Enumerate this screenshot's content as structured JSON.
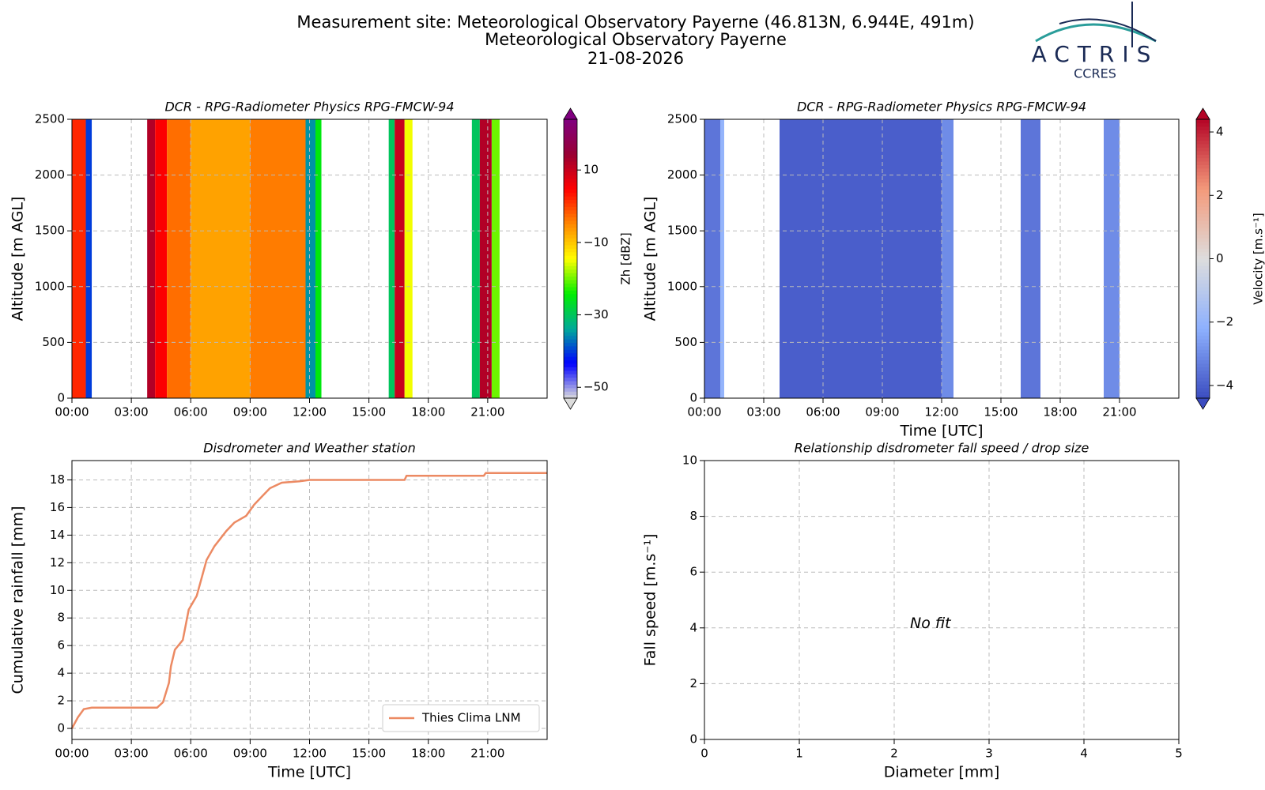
{
  "header": {
    "lines": [
      "Measurement site: Meteorological Observatory Payerne (46.813N, 6.944E, 491m)",
      "Meteorological Observatory Payerne",
      "21-08-2026"
    ],
    "logo": "ACTRIS",
    "logo_sub": "CCRES"
  },
  "chart_data": [
    {
      "type": "heatmap",
      "title": "DCR - RPG-Radiometer Physics RPG-FMCW-94",
      "ylabel": "Altitude [m AGL]",
      "xlim": [
        0,
        24
      ],
      "ylim": [
        0,
        2500
      ],
      "xticks": [
        {
          "value": 0,
          "label": "00:00"
        },
        {
          "value": 3,
          "label": "03:00"
        },
        {
          "value": 6,
          "label": "06:00"
        },
        {
          "value": 9,
          "label": "09:00"
        },
        {
          "value": 12,
          "label": "12:00"
        },
        {
          "value": 15,
          "label": "15:00"
        },
        {
          "value": 18,
          "label": "18:00"
        },
        {
          "value": 21,
          "label": "21:00"
        }
      ],
      "yticks": [
        0,
        500,
        1000,
        1500,
        2000,
        2500
      ],
      "grid": true,
      "colorbar_label": "Zh [dBZ]",
      "zlim": [
        -53,
        24
      ],
      "zticks": [
        {
          "value": -50,
          "label": "−50"
        },
        {
          "value": -30,
          "label": "−30"
        },
        {
          "value": -10,
          "label": "−10"
        },
        10
      ],
      "colormap": [
        "#dcdcdc",
        "#0000ff",
        "#00aa99",
        "#00ee00",
        "#ffff00",
        "#ff8800",
        "#ff0000",
        "#990033",
        "#800080"
      ],
      "x_edges": [
        0,
        0.7,
        1.0,
        3.8,
        4.2,
        4.8,
        6,
        9,
        11.8,
        12.3,
        12.6,
        16,
        16.3,
        16.8,
        17.2,
        20.2,
        20.6,
        21.2,
        21.6,
        24
      ],
      "values": [
        2,
        -40,
        null,
        12,
        5,
        -3,
        -7,
        -4,
        -35,
        -25,
        null,
        -30,
        10,
        -15,
        null,
        -30,
        12,
        -20,
        null
      ]
    },
    {
      "type": "heatmap",
      "title": "DCR - RPG-Radiometer Physics RPG-FMCW-94",
      "ylabel": "Altitude [m AGL]",
      "xlabel": "Time [UTC]",
      "xlim": [
        0,
        24
      ],
      "ylim": [
        0,
        2500
      ],
      "xticks": [
        {
          "value": 0,
          "label": "00:00"
        },
        {
          "value": 3,
          "label": "03:00"
        },
        {
          "value": 6,
          "label": "06:00"
        },
        {
          "value": 9,
          "label": "09:00"
        },
        {
          "value": 12,
          "label": "12:00"
        },
        {
          "value": 15,
          "label": "15:00"
        },
        {
          "value": 18,
          "label": "18:00"
        },
        {
          "value": 21,
          "label": "21:00"
        }
      ],
      "yticks": [
        0,
        500,
        1000,
        1500,
        2000,
        2500
      ],
      "grid": true,
      "colorbar_label": "Velocity [m.s⁻¹]",
      "zlim": [
        -4.4,
        4.4
      ],
      "zticks": [
        {
          "value": -4,
          "label": "−4"
        },
        {
          "value": -2,
          "label": "−2"
        },
        0,
        2,
        4
      ],
      "colormap": [
        "#3b4cc0",
        "#8db0fe",
        "#dddddd",
        "#f49a7b",
        "#b40426"
      ],
      "x_edges": [
        0,
        0.8,
        1.0,
        3.8,
        12,
        12.6,
        16,
        17,
        20.2,
        21,
        24
      ],
      "values": [
        -3.5,
        -2,
        null,
        -4,
        -3,
        null,
        -3.5,
        null,
        -3,
        null
      ]
    },
    {
      "type": "line",
      "title": "Disdrometer and Weather station",
      "ylabel": "Cumulative rainfall [mm]",
      "xlabel": "Time [UTC]",
      "xlim": [
        0,
        24
      ],
      "ylim": [
        -0.8,
        19.4
      ],
      "xticks": [
        {
          "value": 0,
          "label": "00:00"
        },
        {
          "value": 3,
          "label": "03:00"
        },
        {
          "value": 6,
          "label": "06:00"
        },
        {
          "value": 9,
          "label": "09:00"
        },
        {
          "value": 12,
          "label": "12:00"
        },
        {
          "value": 15,
          "label": "15:00"
        },
        {
          "value": 18,
          "label": "18:00"
        },
        {
          "value": 21,
          "label": "21:00"
        }
      ],
      "yticks": [
        0,
        2,
        4,
        6,
        8,
        10,
        12,
        14,
        16,
        18
      ],
      "grid": true,
      "legend": "lower right",
      "x": [
        0,
        0.3,
        0.6,
        1,
        4.3,
        4.6,
        4.9,
        5.0,
        5.2,
        5.6,
        5.9,
        6.3,
        6.8,
        7.2,
        7.8,
        8.2,
        8.8,
        9.2,
        9.6,
        10,
        10.6,
        11.5,
        12,
        16.8,
        16.9,
        20.8,
        20.9,
        24
      ],
      "series": [
        {
          "name": "Thies Clima LNM",
          "color": "#ec8a63",
          "values": [
            0,
            0.8,
            1.4,
            1.5,
            1.5,
            1.9,
            3.3,
            4.5,
            5.7,
            6.4,
            8.6,
            9.6,
            12.2,
            13.2,
            14.3,
            14.9,
            15.4,
            16.2,
            16.8,
            17.4,
            17.8,
            17.9,
            18.0,
            18.0,
            18.3,
            18.3,
            18.5,
            18.5
          ]
        }
      ]
    },
    {
      "type": "scatter",
      "title": "Relationship disdrometer fall speed / drop size",
      "ylabel": "Fall speed [m.s⁻¹]",
      "xlabel": "Diameter [mm]",
      "xlim": [
        0,
        5
      ],
      "ylim": [
        0,
        10
      ],
      "xticks": [
        0,
        1,
        2,
        3,
        4,
        5
      ],
      "yticks": [
        0,
        2,
        4,
        6,
        8,
        10
      ],
      "grid": true,
      "annotation": "No fit"
    }
  ]
}
